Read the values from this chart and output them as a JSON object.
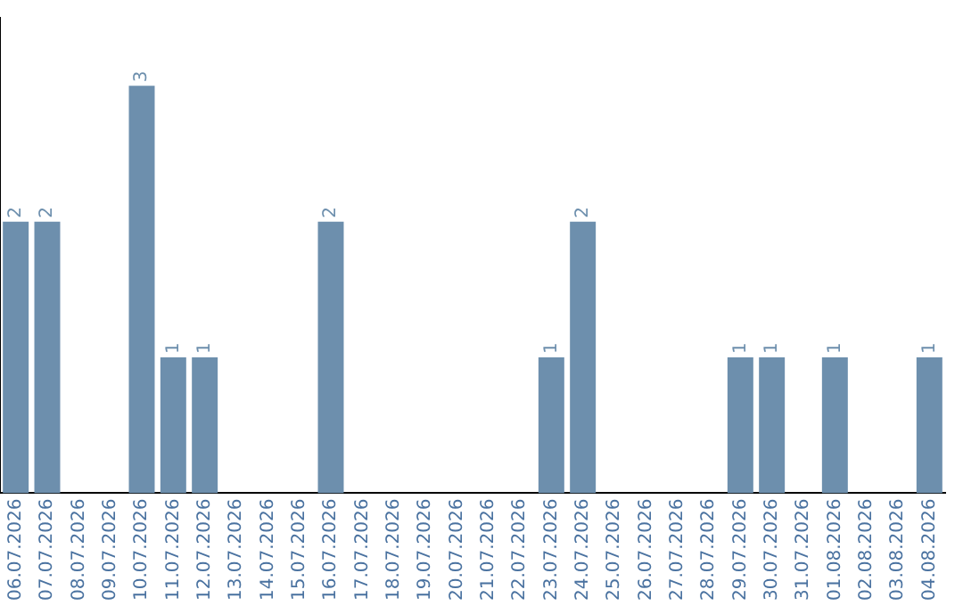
{
  "chart_data": {
    "type": "bar",
    "categories": [
      "06.07.2026",
      "07.07.2026",
      "08.07.2026",
      "09.07.2026",
      "10.07.2026",
      "11.07.2026",
      "12.07.2026",
      "13.07.2026",
      "14.07.2026",
      "15.07.2026",
      "16.07.2026",
      "17.07.2026",
      "18.07.2026",
      "19.07.2026",
      "20.07.2026",
      "21.07.2026",
      "22.07.2026",
      "23.07.2026",
      "24.07.2026",
      "25.07.2026",
      "26.07.2026",
      "27.07.2026",
      "28.07.2026",
      "29.07.2026",
      "30.07.2026",
      "31.07.2026",
      "01.08.2026",
      "02.08.2026",
      "03.08.2026",
      "04.08.2026"
    ],
    "values": [
      2,
      2,
      0,
      0,
      3,
      1,
      1,
      0,
      0,
      0,
      2,
      0,
      0,
      0,
      0,
      0,
      0,
      1,
      2,
      0,
      0,
      0,
      0,
      1,
      1,
      0,
      1,
      0,
      0,
      1
    ],
    "value_labels": [
      "2",
      "2",
      null,
      null,
      "3",
      "1",
      "1",
      null,
      null,
      null,
      "2",
      null,
      null,
      null,
      null,
      null,
      null,
      "1",
      "2",
      null,
      null,
      null,
      null,
      "1",
      "1",
      null,
      "1",
      null,
      null,
      "1"
    ],
    "color": "#6d8fad",
    "grid": false,
    "legend": false,
    "tick_labels": "x"
  }
}
